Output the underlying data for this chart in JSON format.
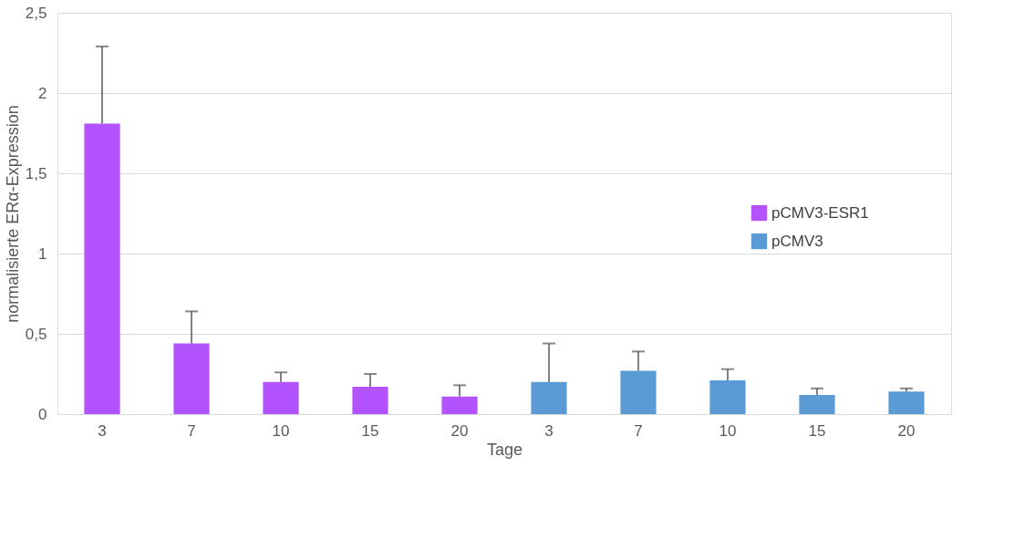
{
  "chart_data": {
    "type": "bar",
    "xlabel": "Tage",
    "ylabel": "normalisierte ERα-Expression",
    "categories": [
      "3",
      "7",
      "10",
      "15",
      "20",
      "3",
      "7",
      "10",
      "15",
      "20"
    ],
    "series": [
      {
        "name": "pCMV3-ESR1",
        "color": "#b253fd",
        "values": [
          1.81,
          0.44,
          0.2,
          0.17,
          0.11,
          null,
          null,
          null,
          null,
          null
        ],
        "errors": [
          [
            1.81,
            2.29
          ],
          [
            0.44,
            0.64
          ],
          [
            0.2,
            0.26
          ],
          [
            0.17,
            0.25
          ],
          [
            0.11,
            0.18
          ],
          null,
          null,
          null,
          null,
          null
        ]
      },
      {
        "name": "pCMV3",
        "color": "#5b9bd5",
        "values": [
          null,
          null,
          null,
          null,
          null,
          0.2,
          0.27,
          0.21,
          0.12,
          0.14
        ],
        "errors": [
          null,
          null,
          null,
          null,
          null,
          [
            0.2,
            0.44
          ],
          [
            0.27,
            0.39
          ],
          [
            0.21,
            0.28
          ],
          [
            0.12,
            0.16
          ],
          [
            0.14,
            0.16
          ]
        ]
      }
    ],
    "ylim": [
      0,
      2.5
    ],
    "yticks": [
      0,
      {
        "value": 0.5,
        "label": "0,5"
      },
      1,
      {
        "value": 1.5,
        "label": "1,5"
      },
      2,
      {
        "value": 2.5,
        "label": "2,5"
      }
    ],
    "grid": "y",
    "legend": "right"
  }
}
